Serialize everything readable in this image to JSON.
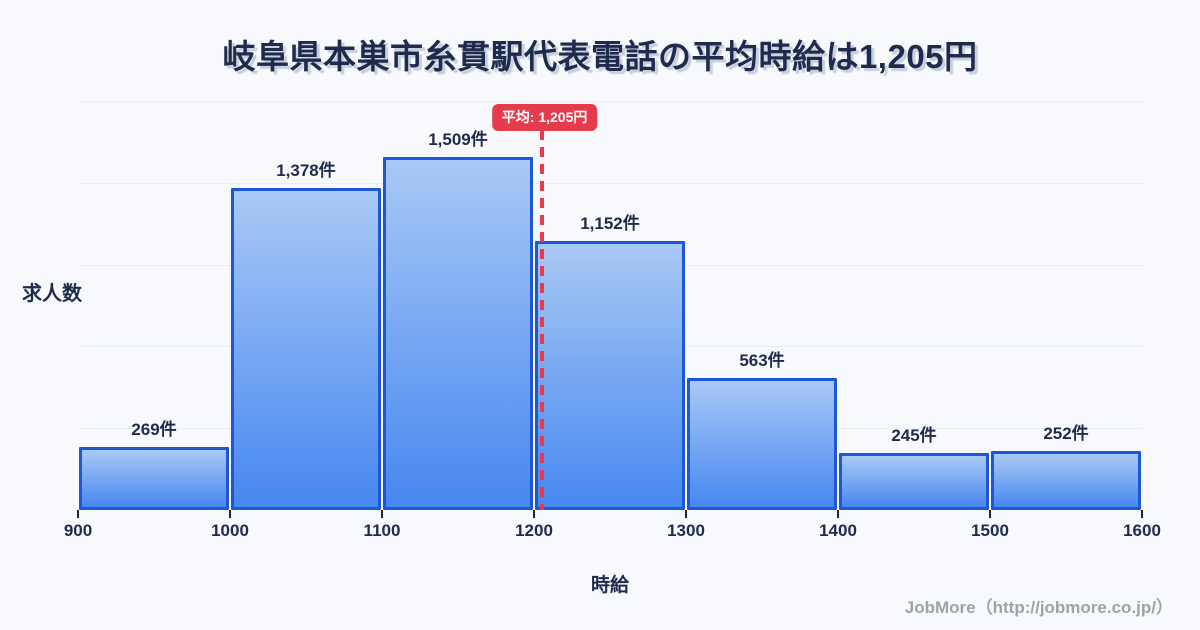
{
  "title": "岐阜県本巣市糸貫駅代表電話の平均時給は1,205円",
  "y_axis_label": "求人数",
  "x_axis_label": "時給",
  "footer": "JobMore（http://jobmore.co.jp/）",
  "average_badge_label": "平均: 1,205円",
  "chart_data": {
    "type": "bar",
    "title": "岐阜県本巣市糸貫駅代表電話の平均時給は1,205円",
    "xlabel": "時給",
    "ylabel": "求人数",
    "categories": [
      "900-1000",
      "1000-1100",
      "1100-1200",
      "1200-1300",
      "1300-1400",
      "1400-1500",
      "1500-1600"
    ],
    "values": [
      269,
      1378,
      1509,
      1152,
      563,
      245,
      252
    ],
    "value_labels": [
      "269件",
      "1,378件",
      "1,509件",
      "1,152件",
      "563件",
      "245件",
      "252件"
    ],
    "x_ticks": [
      "900",
      "1000",
      "1100",
      "1200",
      "1300",
      "1400",
      "1500",
      "1600"
    ],
    "x_range": [
      900,
      1600
    ],
    "ylim": [
      0,
      1750
    ],
    "gridline_count": 5,
    "grid": true,
    "legend": false,
    "average": {
      "value": 1205,
      "label": "平均: 1,205円"
    },
    "colors": {
      "background": "#f7f9fc",
      "bar_border": "#1e56d8",
      "bar_fill_top": "#a9c9f5",
      "bar_fill_bottom": "#4787f0",
      "average_accent": "#e63b4c",
      "text": "#1f2b4d",
      "gridline": "#e8ecf3",
      "footer_text": "#9ca3ab"
    }
  }
}
